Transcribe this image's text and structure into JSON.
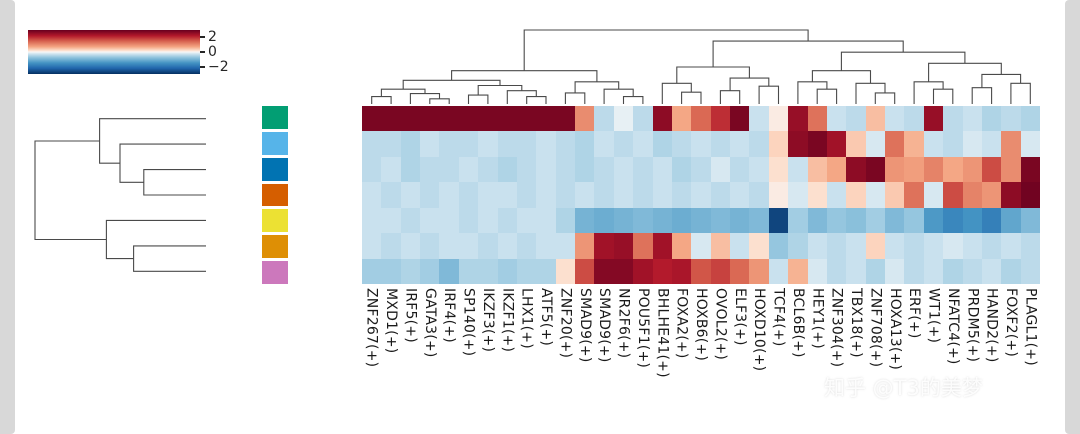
{
  "watermark": "知乎 @T3的美梦",
  "colorbar": {
    "tick_labels": [
      "2",
      "0",
      "−2"
    ]
  },
  "chart_data": {
    "type": "heatmap",
    "variant": "clustermap",
    "colormap": "RdBu_r",
    "colorbar_ticks": [
      2,
      0,
      -2
    ],
    "scale_range": [
      -3,
      3
    ],
    "legend_position": "top-left",
    "grid": false,
    "columns": [
      "ZNF267(+)",
      "MXD1(+)",
      "IRF5(+)",
      "GATA3(+)",
      "IRF4(+)",
      "SP140(+)",
      "IKZF3(+)",
      "IKZF1(+)",
      "LHX1(+)",
      "ATF5(+)",
      "ZNF20(+)",
      "SMAD9(+)",
      "SMAD9(+)",
      "NR2F6(+)",
      "POU5F1(+)",
      "BHLHE41(+)",
      "FOXA2(+)",
      "HOXB6(+)",
      "OVOL2(+)",
      "ELF3(+)",
      "HOXD10(+)",
      "TCF4(+)",
      "BCL6B(+)",
      "HEY1(+)",
      "ZNF304(+)",
      "TBX18(+)",
      "ZNF708(+)",
      "HOXA13(+)",
      "ERF(+)",
      "WT1(+)",
      "NFATC4(+)",
      "PRDM5(+)",
      "HAND2(+)",
      "FOXF2(+)",
      "PLAGL1(+)"
    ],
    "row_group_colors": [
      "#029e73",
      "#56b4e9",
      "#0173b2",
      "#d55e00",
      "#ece133",
      "#de8f05",
      "#cc78bc"
    ],
    "values": [
      [
        2.8,
        2.8,
        2.8,
        2.8,
        2.8,
        2.8,
        2.8,
        2.8,
        2.8,
        2.8,
        2.8,
        1.0,
        -0.4,
        -0.1,
        -0.4,
        2.6,
        0.7,
        1.4,
        2.0,
        2.8,
        -0.3,
        0.1,
        2.5,
        1.3,
        -0.3,
        -0.4,
        0.5,
        -0.3,
        -0.4,
        2.5,
        -0.4,
        -0.3,
        -0.5,
        -0.4,
        -0.5
      ],
      [
        -0.4,
        -0.4,
        -0.5,
        -0.3,
        -0.4,
        -0.4,
        -0.3,
        -0.4,
        -0.4,
        -0.3,
        -0.4,
        -0.5,
        -0.3,
        -0.4,
        -0.3,
        -0.5,
        -0.4,
        -0.3,
        -0.4,
        -0.3,
        -0.4,
        0.3,
        2.6,
        2.8,
        2.4,
        0.4,
        -0.2,
        1.3,
        0.6,
        -0.3,
        -0.4,
        -0.2,
        -0.3,
        1.0,
        -0.2
      ],
      [
        -0.4,
        -0.3,
        -0.5,
        -0.4,
        -0.4,
        -0.3,
        -0.4,
        -0.5,
        -0.4,
        -0.3,
        -0.4,
        -0.5,
        -0.4,
        -0.3,
        -0.4,
        -0.3,
        -0.5,
        -0.4,
        -0.2,
        -0.4,
        -0.3,
        0.2,
        -0.3,
        0.5,
        0.7,
        2.6,
        2.8,
        0.9,
        0.8,
        1.1,
        0.7,
        0.9,
        1.7,
        1.0,
        2.8
      ],
      [
        -0.3,
        -0.4,
        -0.3,
        -0.4,
        -0.3,
        -0.4,
        -0.3,
        -0.3,
        -0.4,
        -0.3,
        -0.4,
        -0.3,
        -0.4,
        -0.3,
        -0.4,
        -0.3,
        -0.4,
        -0.3,
        -0.4,
        -0.3,
        -0.4,
        0.1,
        -0.2,
        0.2,
        -0.3,
        0.3,
        -0.2,
        0.4,
        1.3,
        -0.2,
        1.7,
        1.1,
        0.9,
        2.6,
        2.9
      ],
      [
        -0.3,
        -0.3,
        -0.4,
        -0.3,
        -0.3,
        -0.4,
        -0.3,
        -0.4,
        -0.3,
        -0.3,
        -0.5,
        -1.0,
        -1.1,
        -1.0,
        -0.9,
        -1.0,
        -1.1,
        -1.0,
        -0.9,
        -1.0,
        -0.9,
        -2.7,
        -0.6,
        -0.9,
        -0.7,
        -0.8,
        -0.6,
        -0.9,
        -0.7,
        -1.4,
        -1.7,
        -1.5,
        -1.8,
        -1.2,
        -0.9
      ],
      [
        -0.3,
        -0.4,
        -0.3,
        -0.4,
        -0.3,
        -0.3,
        -0.4,
        -0.3,
        -0.4,
        -0.3,
        -0.3,
        0.9,
        2.4,
        2.5,
        1.3,
        2.4,
        0.7,
        -0.2,
        0.5,
        -0.3,
        0.2,
        -0.7,
        -0.5,
        -0.3,
        -0.4,
        -0.3,
        0.3,
        -0.3,
        -0.4,
        -0.3,
        -0.2,
        -0.3,
        -0.4,
        -0.3,
        -0.4
      ],
      [
        -0.6,
        -0.6,
        -0.5,
        -0.6,
        -0.9,
        -0.5,
        -0.5,
        -0.6,
        -0.5,
        -0.5,
        0.2,
        1.7,
        2.7,
        2.7,
        2.4,
        2.2,
        2.3,
        1.6,
        1.8,
        1.4,
        0.9,
        -0.3,
        0.6,
        -0.2,
        -0.4,
        -0.3,
        -0.5,
        -0.2,
        -0.4,
        -0.3,
        -0.5,
        -0.4,
        -0.3,
        -0.5,
        -0.4
      ]
    ],
    "colormap_stops": [
      [
        0,
        "#053061"
      ],
      [
        0.13,
        "#2166ac"
      ],
      [
        0.25,
        "#4393c3"
      ],
      [
        0.38,
        "#92c5de"
      ],
      [
        0.46,
        "#d1e5f0"
      ],
      [
        0.5,
        "#f7f7f7"
      ],
      [
        0.54,
        "#fddbc7"
      ],
      [
        0.62,
        "#f4a582"
      ],
      [
        0.75,
        "#d6604d"
      ],
      [
        0.87,
        "#b2182b"
      ],
      [
        1,
        "#67001f"
      ]
    ],
    "row_dendrogram": [
      1.0,
      [
        0.62,
        0,
        [
          0.5,
          1,
          [
            0.36,
            2,
            3
          ]
        ]
      ],
      [
        0.58,
        4,
        [
          0.42,
          5,
          6
        ]
      ]
    ],
    "col_dendrogram": [
      1.0,
      [
        0.45,
        [
          0.32,
          [
            0.2,
            [
              0.1,
              0,
              1
            ],
            [
              0.14,
              2,
              [
                0.07,
                3,
                4
              ]
            ]
          ],
          [
            0.25,
            [
              0.12,
              5,
              6
            ],
            [
              0.18,
              7,
              [
                0.1,
                8,
                9
              ]
            ]
          ]
        ],
        [
          0.3,
          [
            0.15,
            10,
            11
          ],
          [
            0.2,
            12,
            [
              0.1,
              13,
              14
            ]
          ]
        ]
      ],
      [
        0.85,
        [
          0.5,
          [
            0.28,
            15,
            [
              0.16,
              16,
              17
            ]
          ],
          [
            0.35,
            [
              0.18,
              18,
              19
            ],
            [
              0.24,
              20,
              21
            ]
          ]
        ],
        [
          0.7,
          [
            0.45,
            [
              0.3,
              22,
              [
                0.2,
                23,
                24
              ]
            ],
            [
              0.28,
              25,
              [
                0.15,
                26,
                27
              ]
            ]
          ],
          [
            0.55,
            [
              0.3,
              28,
              [
                0.2,
                29,
                30
              ]
            ],
            [
              0.4,
              [
                0.22,
                31,
                32
              ],
              [
                0.28,
                33,
                34
              ]
            ]
          ]
        ]
      ]
    ]
  }
}
